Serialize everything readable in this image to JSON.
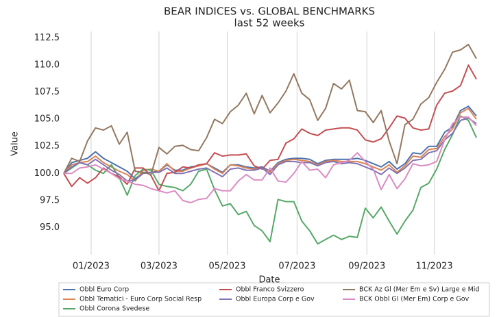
{
  "chart_data": {
    "type": "line",
    "title": "BEAR INDICES vs. GLOBAL BENCHMARKS",
    "subtitle": "last 52 weeks",
    "x_label": "Date",
    "y_label": "Value",
    "x": [
      0,
      1,
      2,
      3,
      4,
      5,
      6,
      7,
      8,
      9,
      10,
      11,
      12,
      13,
      14,
      15,
      16,
      17,
      18,
      19,
      20,
      21,
      22,
      23,
      24,
      25,
      26,
      27,
      28,
      29,
      30,
      31,
      32,
      33,
      34,
      35,
      36,
      37,
      38,
      39,
      40,
      41,
      42,
      43,
      44,
      45,
      46,
      47,
      48,
      49,
      50,
      51,
      52
    ],
    "xlim": [
      0,
      52
    ],
    "xticks": [
      {
        "value": 3.45,
        "label": "01/2023"
      },
      {
        "value": 12.0,
        "label": "03/2023"
      },
      {
        "value": 20.6,
        "label": "05/2023"
      },
      {
        "value": 29.4,
        "label": "07/2023"
      },
      {
        "value": 38.2,
        "label": "09/2023"
      },
      {
        "value": 46.7,
        "label": "11/2023"
      }
    ],
    "ylim": [
      92.5,
      113.1
    ],
    "yticks": [
      {
        "value": 95,
        "label": "95.0"
      },
      97.5,
      {
        "value": 100,
        "label": "100.0"
      },
      102.5,
      {
        "value": 105,
        "label": "105.0"
      },
      107.5,
      {
        "value": 110,
        "label": "110.0"
      },
      112.5
    ],
    "grid": "x",
    "legend": "bottom",
    "series": [
      {
        "name": "Obbl Euro Corp",
        "color": "#4c72b0",
        "values": [
          100,
          101,
          101.2,
          101.4,
          102,
          101.4,
          101,
          100.6,
          100.2,
          99.5,
          100.1,
          100.1,
          100.2,
          100.8,
          100.3,
          100.3,
          100.6,
          100.7,
          100.9,
          100.5,
          100.1,
          100.8,
          100.8,
          100.6,
          100.5,
          100.6,
          100.2,
          101,
          101.3,
          101.4,
          101.4,
          101.3,
          100.9,
          101.2,
          101.3,
          101.3,
          101.3,
          101.4,
          101.2,
          100.9,
          100.6,
          101.1,
          100.4,
          100.9,
          101.9,
          101.8,
          102.5,
          102.5,
          103.8,
          104.3,
          105.8,
          106.2,
          105.3
        ]
      },
      {
        "name": "Obbl Tematici - Euro Corp Social Resp",
        "color": "#dd8452",
        "values": [
          100,
          100.8,
          101,
          101.1,
          101.6,
          101,
          100.6,
          100.2,
          99.9,
          99.3,
          100.3,
          100.4,
          100.2,
          100.9,
          100.2,
          100.2,
          100.5,
          100.7,
          100.9,
          100.4,
          100,
          100.8,
          100.7,
          100.5,
          100.4,
          100.5,
          100.1,
          100.9,
          101.2,
          101.3,
          101.2,
          101.1,
          100.8,
          101.1,
          101.2,
          101.1,
          101.1,
          101.1,
          100.9,
          100.6,
          100.3,
          100.8,
          100.1,
          100.7,
          101.6,
          101.5,
          102.2,
          102.3,
          103.4,
          104.1,
          105.6,
          106.0,
          105.0
        ]
      },
      {
        "name": "Obbl Corona Svedese",
        "color": "#55a868",
        "values": [
          100,
          100.5,
          101,
          100.8,
          100.3,
          100,
          100.8,
          99.6,
          98.0,
          99.8,
          100.4,
          100.3,
          99,
          98.8,
          98.7,
          98.4,
          99,
          100.2,
          100.4,
          98.5,
          97,
          97.2,
          96.2,
          96.5,
          95.2,
          94.7,
          93.7,
          97.6,
          97.4,
          97.4,
          95.6,
          94.7,
          93.5,
          93.9,
          94.3,
          93.9,
          94.2,
          94.1,
          96.8,
          95.9,
          96.9,
          95.6,
          94.4,
          95.6,
          96.6,
          98.7,
          99.1,
          100.4,
          102.2,
          103.6,
          105.3,
          104.9,
          103.3
        ]
      },
      {
        "name": "Obbl Franco Svizzero",
        "color": "#c44e52",
        "values": [
          100,
          98.8,
          99.6,
          99.1,
          99.6,
          100.5,
          100,
          99.7,
          99.0,
          100.5,
          100.5,
          99.8,
          98.4,
          100,
          100.1,
          100.6,
          100.5,
          100.8,
          100.9,
          101.9,
          101.6,
          101.7,
          101.7,
          101.8,
          100.7,
          100.4,
          101.2,
          101.3,
          102.8,
          103.2,
          104.1,
          103.7,
          103.5,
          104.0,
          104.1,
          104.2,
          104.2,
          104.0,
          103.1,
          102.9,
          103.2,
          104.2,
          105.3,
          105.1,
          104.2,
          104.0,
          104.1,
          106.3,
          107.4,
          107.6,
          108.1,
          110.0,
          108.7
        ]
      },
      {
        "name": "Obbl Europa Corp e Gov",
        "color": "#8172b3",
        "values": [
          100,
          100.6,
          101,
          100.8,
          101.3,
          100.8,
          100.3,
          99.9,
          99.3,
          99.4,
          100,
          100.1,
          100.1,
          100.5,
          100,
          100,
          100.2,
          100.4,
          100.5,
          100.1,
          99.7,
          100.4,
          100.5,
          100.3,
          100.3,
          100.5,
          99.9,
          100.8,
          101.1,
          101.1,
          101,
          101,
          100.7,
          101,
          101.1,
          100.9,
          101,
          100.9,
          100.6,
          100.3,
          99.9,
          100.5,
          100,
          100.5,
          101.2,
          101.3,
          101.9,
          102.1,
          103.1,
          103.7,
          104.9,
          105.1,
          104.6
        ]
      },
      {
        "name": "BCK Az Gl (Mer Em e Sv) Large e Mid",
        "color": "#937860",
        "values": [
          100.0,
          101.4,
          101.1,
          103.0,
          104.2,
          104.0,
          104.4,
          102.7,
          103.8,
          100.2,
          100.1,
          99.9,
          102.4,
          101.8,
          102.5,
          102.6,
          102.2,
          102.1,
          103.3,
          105.0,
          104.6,
          105.7,
          106.3,
          107.4,
          105.5,
          107.2,
          105.6,
          106.5,
          107.6,
          109.2,
          107.4,
          106.8,
          104.9,
          106.0,
          108.3,
          107.8,
          108.6,
          105.8,
          105.7,
          104.7,
          105.8,
          103.0,
          100.9,
          104.5,
          105.0,
          106.4,
          107.0,
          108.4,
          109.6,
          111.2,
          111.4,
          111.9,
          110.6
        ]
      },
      {
        "name": "BCK Obbl Gl (Mer Em) Corp e Gov",
        "color": "#da8bc3",
        "values": [
          100,
          100.0,
          100.5,
          100.6,
          100.8,
          100.4,
          100,
          99.5,
          99.3,
          99.0,
          98.9,
          98.6,
          98.4,
          98.2,
          98.4,
          97.5,
          97.3,
          97.6,
          97.7,
          98.6,
          98.4,
          98.4,
          99.3,
          99.9,
          99.4,
          99.4,
          100.5,
          99.3,
          99.2,
          100.0,
          101.1,
          100.3,
          100.4,
          99.6,
          100.8,
          101.0,
          101.2,
          101.9,
          101.1,
          100.4,
          98.5,
          99.9,
          98.6,
          99.5,
          100.9,
          100.7,
          100.8,
          101.1,
          103.1,
          104.6,
          105.2,
          105.2,
          104.4
        ]
      }
    ]
  }
}
